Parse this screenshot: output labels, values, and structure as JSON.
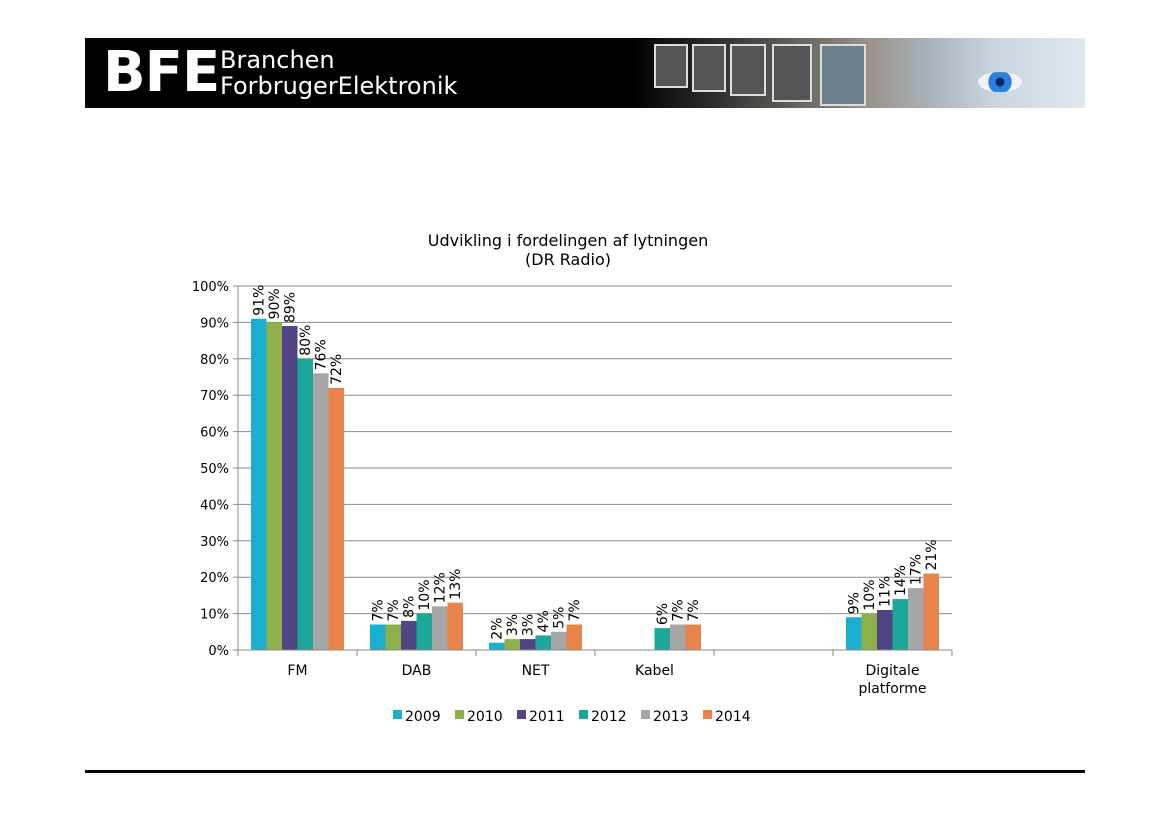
{
  "header": {
    "logo_letters": "BFE",
    "logo_line1": "Branchen",
    "logo_line2": "ForbrugerElektronik"
  },
  "chart_data": {
    "type": "bar",
    "title": "Udvikling i fordelingen af lytningen",
    "subtitle": "(DR Radio)",
    "categories": [
      "FM",
      "DAB",
      "NET",
      "Kabel",
      "",
      "Digitale platforme"
    ],
    "ylim": [
      0,
      1
    ],
    "yticks": [
      "0%",
      "10%",
      "20%",
      "30%",
      "40%",
      "50%",
      "60%",
      "70%",
      "80%",
      "90%",
      "100%"
    ],
    "grid": true,
    "legend_position": "bottom",
    "series": [
      {
        "name": "2009",
        "color": "#1aafd0",
        "values": [
          0.91,
          0.07,
          0.02,
          null,
          null,
          0.09
        ],
        "labels": [
          "91%",
          "7%",
          "2%",
          "",
          "",
          "9%"
        ]
      },
      {
        "name": "2010",
        "color": "#8db04a",
        "values": [
          0.9,
          0.07,
          0.03,
          null,
          null,
          0.1
        ],
        "labels": [
          "90%",
          "7%",
          "3%",
          "",
          "",
          "10%"
        ]
      },
      {
        "name": "2011",
        "color": "#4f4584",
        "values": [
          0.89,
          0.08,
          0.03,
          null,
          null,
          0.11
        ],
        "labels": [
          "89%",
          "8%",
          "3%",
          "",
          "",
          "11%"
        ]
      },
      {
        "name": "2012",
        "color": "#1ca898",
        "values": [
          0.8,
          0.1,
          0.04,
          0.06,
          null,
          0.14
        ],
        "labels": [
          "80%",
          "10%",
          "4%",
          "6%",
          "",
          "14%"
        ]
      },
      {
        "name": "2013",
        "color": "#a6a6a6",
        "values": [
          0.76,
          0.12,
          0.05,
          0.07,
          null,
          0.17
        ],
        "labels": [
          "76%",
          "12%",
          "5%",
          "7%",
          "",
          "17%"
        ]
      },
      {
        "name": "2014",
        "color": "#e8834a",
        "values": [
          0.72,
          0.13,
          0.07,
          0.07,
          null,
          0.21
        ],
        "labels": [
          "72%",
          "13%",
          "7%",
          "7%",
          "",
          "21%"
        ]
      }
    ]
  }
}
